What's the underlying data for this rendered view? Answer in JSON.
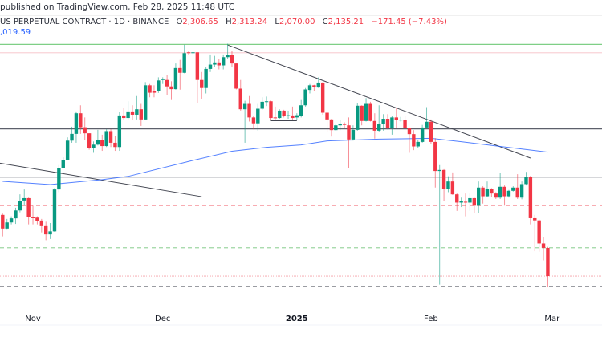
{
  "header": {
    "published": "published on TradingView.com, Feb 28, 2025 11:48 UTC",
    "symbol": "US PERPETUAL CONTRACT · 1D · BINANCE",
    "open_label": "O",
    "open": "2,306.65",
    "high_label": "H",
    "high": "2,313.24",
    "low_label": "L",
    "low": "2,070.00",
    "close_label": "C",
    "close": "2,135.21",
    "change": "−171.45 (−7.43%)",
    "ma_value": ",019.59"
  },
  "colors": {
    "up": "#089981",
    "down": "#f23645",
    "ma": "#2962ff",
    "trendline": "#434651",
    "text": "#131722"
  },
  "chart_data": {
    "type": "candlestick",
    "interval": "1D",
    "y_scale": "log",
    "grid": false,
    "x_ticks": [
      {
        "label": "Nov",
        "date": "2024-11-01",
        "bold": false
      },
      {
        "label": "Dec",
        "date": "2024-12-01",
        "bold": false
      },
      {
        "label": "2025",
        "date": "2025-01-01",
        "bold": true
      },
      {
        "label": "Feb",
        "date": "2025-02-01",
        "bold": false
      },
      {
        "label": "Mar",
        "date": "2025-03-01",
        "bold": false
      }
    ],
    "candle_fields": [
      "date",
      "open",
      "high",
      "low",
      "close"
    ],
    "candles": [
      [
        "2024-10-25",
        2526,
        2535,
        2381,
        2433
      ],
      [
        "2024-10-26",
        2433,
        2498,
        2425,
        2474
      ],
      [
        "2024-10-27",
        2474,
        2516,
        2461,
        2502
      ],
      [
        "2024-10-28",
        2502,
        2576,
        2464,
        2557
      ],
      [
        "2024-10-29",
        2557,
        2673,
        2544,
        2624
      ],
      [
        "2024-10-30",
        2628,
        2709,
        2591,
        2645
      ],
      [
        "2024-10-31",
        2645,
        2649,
        2461,
        2513
      ],
      [
        "2024-11-01",
        2513,
        2591,
        2461,
        2503
      ],
      [
        "2024-11-02",
        2507,
        2516,
        2461,
        2483
      ],
      [
        "2024-11-03",
        2487,
        2498,
        2407,
        2449
      ],
      [
        "2024-11-04",
        2449,
        2479,
        2356,
        2394
      ],
      [
        "2024-11-05",
        2394,
        2470,
        2364,
        2414
      ],
      [
        "2024-11-06",
        2414,
        2719,
        2411,
        2709
      ],
      [
        "2024-11-07",
        2709,
        2897,
        2689,
        2875
      ],
      [
        "2024-11-08",
        2875,
        2958,
        2871,
        2936
      ],
      [
        "2024-11-09",
        2936,
        3126,
        2936,
        3098
      ],
      [
        "2024-11-10",
        3098,
        3219,
        3080,
        3156
      ],
      [
        "2024-11-11",
        3156,
        3357,
        3080,
        3340
      ],
      [
        "2024-11-12",
        3340,
        3414,
        3156,
        3214
      ],
      [
        "2024-11-13",
        3214,
        3302,
        3103,
        3161
      ],
      [
        "2024-11-14",
        3161,
        3161,
        3022,
        3033
      ],
      [
        "2024-11-15",
        3033,
        3091,
        2996,
        3064
      ],
      [
        "2024-11-16",
        3064,
        3191,
        3057,
        3103
      ],
      [
        "2024-11-17",
        3103,
        3149,
        3012,
        3052
      ],
      [
        "2024-11-18",
        3052,
        3196,
        3044,
        3180
      ],
      [
        "2024-11-19",
        3180,
        3196,
        3044,
        3080
      ],
      [
        "2024-11-20",
        3080,
        3138,
        3012,
        3044
      ],
      [
        "2024-11-21",
        3044,
        3352,
        3012,
        3320
      ],
      [
        "2024-11-22",
        3320,
        3389,
        3277,
        3297
      ],
      [
        "2024-11-23",
        3297,
        3452,
        3282,
        3357
      ],
      [
        "2024-11-24",
        3357,
        3414,
        3277,
        3327
      ],
      [
        "2024-11-25",
        3327,
        3502,
        3284,
        3377
      ],
      [
        "2024-11-26",
        3377,
        3427,
        3226,
        3284
      ],
      [
        "2024-11-27",
        3284,
        3639,
        3277,
        3607
      ],
      [
        "2024-11-28",
        3607,
        3620,
        3490,
        3534
      ],
      [
        "2024-11-29",
        3553,
        3607,
        3490,
        3534
      ],
      [
        "2024-11-30",
        3548,
        3687,
        3532,
        3655
      ],
      [
        "2024-12-01",
        3660,
        3687,
        3620,
        3669
      ],
      [
        "2024-12-02",
        3660,
        3714,
        3514,
        3596
      ],
      [
        "2024-12-03",
        3596,
        3647,
        3464,
        3569
      ],
      [
        "2024-12-04",
        3569,
        3830,
        3564,
        3782
      ],
      [
        "2024-12-05",
        3782,
        3868,
        3564,
        3733
      ],
      [
        "2024-12-06",
        3733,
        4033,
        3728,
        3940
      ],
      [
        "2024-12-07",
        3949,
        3960,
        3917,
        3940
      ],
      [
        "2024-12-08",
        3943,
        3954,
        3926,
        3949
      ],
      [
        "2024-12-09",
        3949,
        3952,
        3432,
        3660
      ],
      [
        "2024-12-10",
        3660,
        3741,
        3477,
        3580
      ],
      [
        "2024-12-11",
        3580,
        3795,
        3527,
        3773
      ],
      [
        "2024-12-12",
        3773,
        3926,
        3741,
        3818
      ],
      [
        "2024-12-13",
        3818,
        3911,
        3795,
        3841
      ],
      [
        "2024-12-14",
        3841,
        3882,
        3768,
        3810
      ],
      [
        "2024-12-15",
        3810,
        3926,
        3768,
        3897
      ],
      [
        "2024-12-16",
        3897,
        4044,
        3882,
        3920
      ],
      [
        "2024-12-17",
        3920,
        3969,
        3795,
        3830
      ],
      [
        "2024-12-18",
        3830,
        3838,
        3566,
        3574
      ],
      [
        "2024-12-19",
        3574,
        3660,
        3364,
        3377
      ],
      [
        "2024-12-20",
        3377,
        3457,
        3080,
        3427
      ],
      [
        "2024-12-21",
        3427,
        3502,
        3265,
        3302
      ],
      [
        "2024-12-22",
        3302,
        3314,
        3196,
        3249
      ],
      [
        "2024-12-23",
        3249,
        3427,
        3184,
        3382
      ],
      [
        "2024-12-24",
        3382,
        3490,
        3372,
        3447
      ],
      [
        "2024-12-25",
        3447,
        3497,
        3407,
        3452
      ],
      [
        "2024-12-26",
        3452,
        3457,
        3277,
        3297
      ],
      [
        "2024-12-27",
        3302,
        3402,
        3277,
        3297
      ],
      [
        "2024-12-28",
        3297,
        3377,
        3290,
        3364
      ],
      [
        "2024-12-29",
        3364,
        3372,
        3302,
        3314
      ],
      [
        "2024-12-30",
        3317,
        3364,
        3290,
        3322
      ],
      [
        "2024-12-31",
        3320,
        3402,
        3277,
        3297
      ],
      [
        "2025-01-01",
        3302,
        3340,
        3277,
        3322
      ],
      [
        "2025-01-02",
        3314,
        3464,
        3302,
        3414
      ],
      [
        "2025-01-03",
        3414,
        3580,
        3402,
        3566
      ],
      [
        "2025-01-04",
        3561,
        3620,
        3527,
        3607
      ],
      [
        "2025-01-05",
        3607,
        3612,
        3553,
        3588
      ],
      [
        "2025-01-06",
        3585,
        3687,
        3580,
        3634
      ],
      [
        "2025-01-07",
        3634,
        3639,
        3327,
        3345
      ],
      [
        "2025-01-08",
        3345,
        3357,
        3173,
        3284
      ],
      [
        "2025-01-09",
        3284,
        3290,
        3133,
        3189
      ],
      [
        "2025-01-10",
        3189,
        3242,
        3184,
        3231
      ],
      [
        "2025-01-11",
        3231,
        3282,
        3189,
        3247
      ],
      [
        "2025-01-12",
        3247,
        3258,
        3207,
        3235
      ],
      [
        "2025-01-13",
        3231,
        3302,
        2875,
        3108
      ],
      [
        "2025-01-14",
        3108,
        3231,
        3098,
        3191
      ],
      [
        "2025-01-15",
        3191,
        3432,
        3184,
        3410
      ],
      [
        "2025-01-16",
        3410,
        3414,
        3231,
        3270
      ],
      [
        "2025-01-17",
        3270,
        3482,
        3265,
        3427
      ],
      [
        "2025-01-18",
        3427,
        3447,
        3265,
        3270
      ],
      [
        "2025-01-19",
        3270,
        3340,
        3115,
        3184
      ],
      [
        "2025-01-20",
        3184,
        3414,
        3173,
        3247
      ],
      [
        "2025-01-21",
        3247,
        3332,
        3184,
        3290
      ],
      [
        "2025-01-22",
        3290,
        3332,
        3194,
        3207
      ],
      [
        "2025-01-23",
        3207,
        3314,
        3149,
        3302
      ],
      [
        "2025-01-24",
        3302,
        3389,
        3207,
        3277
      ],
      [
        "2025-01-25",
        3277,
        3307,
        3265,
        3282
      ],
      [
        "2025-01-26",
        3282,
        3314,
        3200,
        3207
      ],
      [
        "2025-01-27",
        3207,
        3212,
        2996,
        3154
      ],
      [
        "2025-01-28",
        3154,
        3189,
        3018,
        3049
      ],
      [
        "2025-01-29",
        3049,
        3103,
        3033,
        3087
      ],
      [
        "2025-01-30",
        3087,
        3235,
        3080,
        3212
      ],
      [
        "2025-01-31",
        3212,
        3397,
        3207,
        3263
      ],
      [
        "2025-02-01",
        3263,
        3284,
        3073,
        3087
      ],
      [
        "2025-02-02",
        3087,
        3119,
        2723,
        2850
      ],
      [
        "2025-02-03",
        2850,
        2897,
        2086,
        2858
      ],
      [
        "2025-02-04",
        2858,
        2864,
        2622,
        2715
      ],
      [
        "2025-02-05",
        2715,
        2809,
        2689,
        2769
      ],
      [
        "2025-02-06",
        2769,
        2839,
        2669,
        2673
      ],
      [
        "2025-02-07",
        2673,
        2679,
        2554,
        2613
      ],
      [
        "2025-02-08",
        2613,
        2649,
        2581,
        2622
      ],
      [
        "2025-02-09",
        2619,
        2679,
        2516,
        2613
      ],
      [
        "2025-02-10",
        2613,
        2679,
        2554,
        2645
      ],
      [
        "2025-02-11",
        2645,
        2649,
        2541,
        2591
      ],
      [
        "2025-02-12",
        2591,
        2769,
        2539,
        2723
      ],
      [
        "2025-02-13",
        2723,
        2733,
        2606,
        2659
      ],
      [
        "2025-02-14",
        2659,
        2769,
        2653,
        2713
      ],
      [
        "2025-02-15",
        2713,
        2719,
        2653,
        2679
      ],
      [
        "2025-02-16",
        2679,
        2689,
        2639,
        2649
      ],
      [
        "2025-02-17",
        2649,
        2833,
        2639,
        2729
      ],
      [
        "2025-02-18",
        2729,
        2739,
        2591,
        2659
      ],
      [
        "2025-02-19",
        2659,
        2705,
        2649,
        2699
      ],
      [
        "2025-02-20",
        2699,
        2733,
        2693,
        2723
      ],
      [
        "2025-02-21",
        2723,
        2825,
        2639,
        2649
      ],
      [
        "2025-02-22",
        2649,
        2769,
        2637,
        2749
      ],
      [
        "2025-02-23",
        2749,
        2843,
        2739,
        2803
      ],
      [
        "2025-02-24",
        2803,
        2813,
        2461,
        2503
      ],
      [
        "2025-02-25",
        2503,
        2526,
        2286,
        2488
      ],
      [
        "2025-02-26",
        2488,
        2494,
        2283,
        2335
      ],
      [
        "2025-02-27",
        2335,
        2376,
        2229,
        2307
      ],
      [
        "2025-02-28",
        2306.65,
        2313.24,
        2070.0,
        2135.21
      ]
    ],
    "moving_average": [
      [
        "2024-10-25",
        2770
      ],
      [
        "2024-11-05",
        2746
      ],
      [
        "2024-11-17",
        2783
      ],
      [
        "2024-11-23",
        2808
      ],
      [
        "2024-12-08",
        2934
      ],
      [
        "2024-12-17",
        3009
      ],
      [
        "2024-12-25",
        3042
      ],
      [
        "2025-01-02",
        3062
      ],
      [
        "2025-01-08",
        3096
      ],
      [
        "2025-01-20",
        3111
      ],
      [
        "2025-02-01",
        3118
      ],
      [
        "2025-02-08",
        3089
      ],
      [
        "2025-02-17",
        3049
      ],
      [
        "2025-02-28",
        3002
      ]
    ],
    "horizontal_levels": [
      {
        "price": 4036,
        "style": "solid",
        "color": "#7fcf86"
      },
      {
        "price": 3945,
        "style": "solid",
        "color": "#f9d3d7"
      },
      {
        "price": 3200,
        "style": "solid",
        "color": "#5d606b"
      },
      {
        "price": 2803,
        "style": "solid",
        "color": "#5d606b"
      },
      {
        "price": 2591,
        "style": "dashed",
        "color": "#f7a0a7"
      },
      {
        "price": 2308,
        "style": "dashed",
        "color": "#9fd6a3"
      },
      {
        "price": 2135,
        "style": "dotted",
        "color": "#f7b4ba"
      },
      {
        "price": 2075,
        "style": "dashed",
        "color": "#5d606b"
      }
    ],
    "trendlines": [
      {
        "from": [
          "2024-12-16",
          4030
        ],
        "to": [
          "2025-02-24",
          2953
        ]
      },
      {
        "from": [
          "2024-10-24",
          2914
        ],
        "to": [
          "2024-12-10",
          2656
        ]
      },
      {
        "from": [
          "2024-12-26",
          3272
        ],
        "to": [
          "2025-01-01",
          3272
        ]
      }
    ]
  }
}
